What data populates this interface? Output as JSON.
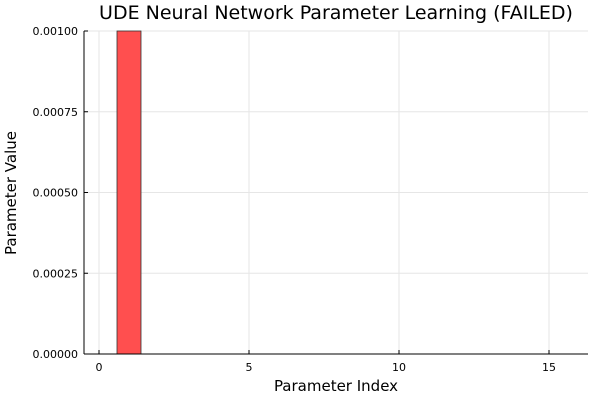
{
  "chart_data": {
    "type": "bar",
    "title": "UDE Neural Network Parameter Learning (FAILED)",
    "xlabel": "Parameter Index",
    "ylabel": "Parameter Value",
    "x": [
      1,
      2,
      3,
      4,
      5,
      6,
      7,
      8,
      9,
      10,
      11,
      12,
      13,
      14,
      15,
      16
    ],
    "values": [
      0.001,
      0,
      0,
      0,
      0,
      0,
      0,
      0,
      0,
      0,
      0,
      0,
      0,
      0,
      0,
      0
    ],
    "xlim": [
      -0.5,
      16.3
    ],
    "ylim": [
      0,
      0.001
    ],
    "xticks": [
      0,
      5,
      10,
      15
    ],
    "xtick_labels": [
      "0",
      "5",
      "10",
      "15"
    ],
    "yticks": [
      0,
      0.00025,
      0.0005,
      0.00075,
      0.001
    ],
    "ytick_labels": [
      "0.00000",
      "0.00025",
      "0.00050",
      "0.00075",
      "0.00100"
    ],
    "bar_color": "#ff4f4f",
    "grid": true,
    "legend": "none"
  }
}
